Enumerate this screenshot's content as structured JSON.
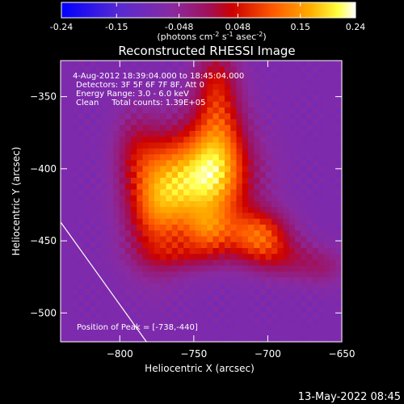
{
  "chart_data": {
    "type": "heatmap",
    "title": "Reconstructed RHESSI Image",
    "colorbar": {
      "ticks": [
        "-0.24",
        "-0.15",
        "-0.048",
        "0.048",
        "0.15",
        "0.24"
      ],
      "tick_values": [
        -0.24,
        -0.15,
        -0.048,
        0.048,
        0.15,
        0.24
      ],
      "range": [
        -0.24,
        0.24
      ],
      "unit_main": "(photons cm",
      "unit_sup1": "-2",
      "unit_mid": " s",
      "unit_sup2": "-1",
      "unit_end": " asec",
      "unit_sup3": "-2",
      "unit_close": ")"
    },
    "xlabel": "Heliocentric X (arcsec)",
    "ylabel": "Heliocentric Y (arcsec)",
    "xlim": [
      -840,
      -650
    ],
    "ylim": [
      -520,
      -325
    ],
    "x_ticks": [
      -800,
      -750,
      -700,
      -650
    ],
    "y_ticks": [
      -350,
      -400,
      -450,
      -500
    ],
    "info_lines": [
      "4-Aug-2012 18:39:04.000 to 18:45:04.000",
      "Detectors: 3F 5F 6F 7F 8F, Att 0",
      "Energy Range: 3.0 - 6.0 keV",
      "Clean     Total counts: 1.39E+05"
    ],
    "peak_label": "Position of Peak = [-738,-440]",
    "peak": [
      -738,
      -440
    ],
    "limb_line": [
      [
        -840,
        -437
      ],
      [
        -782,
        -520
      ]
    ],
    "blobs": [
      {
        "x": -745,
        "y": -408,
        "sx": 22,
        "sy": 24,
        "a": 0.26
      },
      {
        "x": -740,
        "y": -443,
        "sx": 12,
        "sy": 11,
        "a": 0.11
      },
      {
        "x": -706,
        "y": -446,
        "sx": 14,
        "sy": 12,
        "a": 0.17
      },
      {
        "x": -776,
        "y": -425,
        "sx": 14,
        "sy": 28,
        "a": 0.16
      },
      {
        "x": -733,
        "y": -375,
        "sx": 12,
        "sy": 26,
        "a": 0.12
      },
      {
        "x": -735,
        "y": -338,
        "sx": 10,
        "sy": 18,
        "a": 0.08
      },
      {
        "x": -690,
        "y": -462,
        "sx": 16,
        "sy": 10,
        "a": 0.07
      },
      {
        "x": -663,
        "y": -468,
        "sx": 12,
        "sy": 9,
        "a": 0.05
      },
      {
        "x": -755,
        "y": -460,
        "sx": 22,
        "sy": 8,
        "a": 0.06
      },
      {
        "x": -790,
        "y": -385,
        "sx": 10,
        "sy": 18,
        "a": 0.06
      }
    ],
    "background": -0.08,
    "colors": {
      "low": "#0000ff",
      "mid": "#aa0000",
      "high": "#ffffff",
      "limb": "#ffffff"
    }
  },
  "footer_date": "13-May-2022 08:45"
}
